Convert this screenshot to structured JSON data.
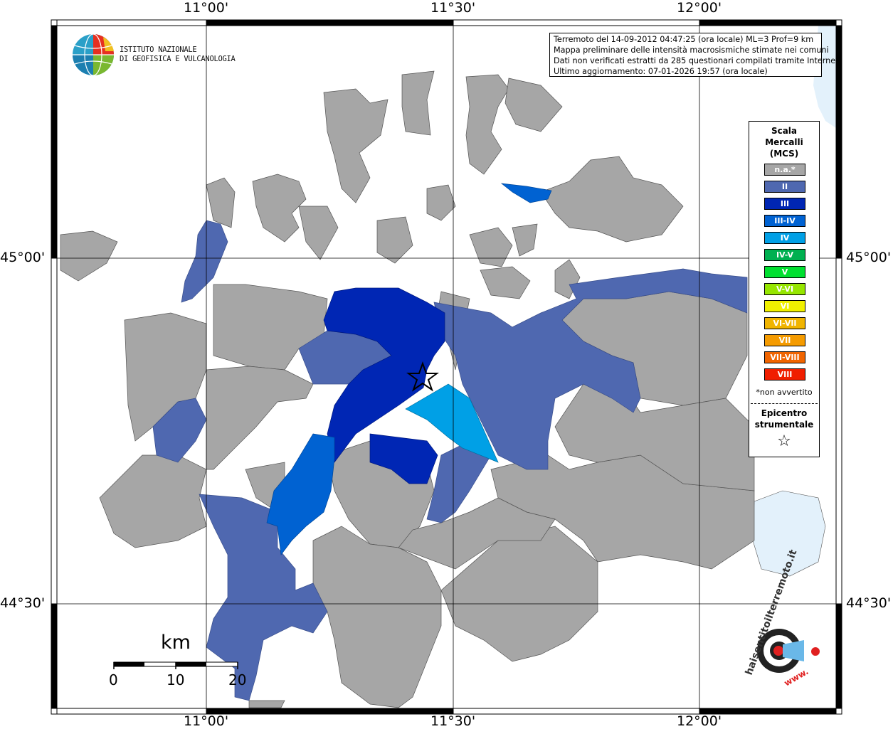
{
  "map": {
    "top_ticks": [
      "11°00'",
      "11°30'",
      "12°00'"
    ],
    "bottom_ticks": [
      "11°00'",
      "11°30'",
      "12°00'"
    ],
    "left_ticks": [
      "45°00'",
      "44°30'"
    ],
    "right_ticks": [
      "45°00'",
      "44°30'"
    ]
  },
  "logo": {
    "line1": "ISTITUTO NAZIONALE",
    "line2": "DI GEOFISICA E VULCANOLOGIA"
  },
  "info": {
    "line1": "Terremoto del 14-09-2012 04:47:25 (ora locale) ML=3 Prof=9 km",
    "line2": "Mappa preliminare delle intensità macrosismiche stimate nei comuni",
    "line3": "Dati non verificati estratti da 285 questionari compilati tramite Internet.",
    "line4": "Ultimo aggiornamento: 07-01-2026 19:57 (ora locale)"
  },
  "legend": {
    "title1": "Scala",
    "title2": "Mercalli",
    "title3": "(MCS)",
    "items": [
      {
        "label": "n.a.*",
        "color": "#a6a6a6"
      },
      {
        "label": "II",
        "color": "#4f68b0"
      },
      {
        "label": "III",
        "color": "#0026b4"
      },
      {
        "label": "III-IV",
        "color": "#0062d2"
      },
      {
        "label": "IV",
        "color": "#00a0e6"
      },
      {
        "label": "IV-V",
        "color": "#00b050"
      },
      {
        "label": "V",
        "color": "#00e030"
      },
      {
        "label": "V-VI",
        "color": "#96e600"
      },
      {
        "label": "VI",
        "color": "#f0f000"
      },
      {
        "label": "VI-VII",
        "color": "#f0b400"
      },
      {
        "label": "VII",
        "color": "#f59b00"
      },
      {
        "label": "VII-VIII",
        "color": "#f06400"
      },
      {
        "label": "VIII",
        "color": "#f01e00"
      }
    ],
    "note": "*non avvertito",
    "epicenter1": "Epicentro",
    "epicenter2": "strumentale",
    "star": "☆"
  },
  "scalebar": {
    "unit": "km",
    "labels": [
      "0",
      "10",
      "20"
    ]
  },
  "watermark": {
    "text": "haisentitoilterremoto.it",
    "prefix": "www."
  }
}
